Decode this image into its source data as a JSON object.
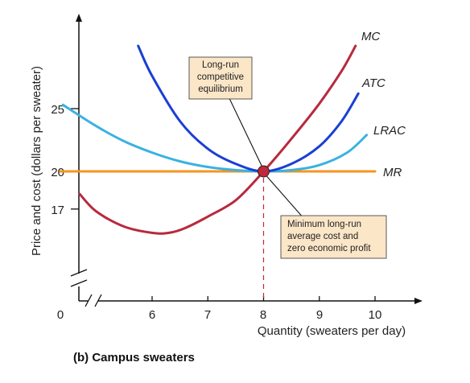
{
  "chart_data": {
    "type": "line",
    "title": "(b) Campus sweaters",
    "xlabel": "Quantity (sweaters per day)",
    "ylabel": "Price and cost (dollars per sweater)",
    "x_ticks": [
      "6",
      "7",
      "8",
      "9",
      "10"
    ],
    "y_ticks": [
      "17",
      "20",
      "25"
    ],
    "origin_label": "0",
    "xlim": [
      5,
      10.5
    ],
    "ylim": [
      13,
      30
    ],
    "axis_breaks": true,
    "grid": false,
    "series": [
      {
        "name": "MC",
        "color": "#b8293d",
        "points": [
          [
            4.7,
            18.2
          ],
          [
            5.0,
            16.8
          ],
          [
            5.5,
            15.6
          ],
          [
            6.0,
            15.1
          ],
          [
            6.3,
            15.1
          ],
          [
            6.6,
            15.5
          ],
          [
            7.0,
            16.4
          ],
          [
            7.5,
            17.7
          ],
          [
            8.0,
            20.0
          ],
          [
            8.5,
            22.6
          ],
          [
            9.0,
            25.4
          ],
          [
            9.4,
            28.0
          ],
          [
            9.65,
            30.0
          ]
        ]
      },
      {
        "name": "ATC",
        "color": "#1a3fd4",
        "points": [
          [
            5.75,
            30.0
          ],
          [
            6.0,
            27.6
          ],
          [
            6.5,
            24.0
          ],
          [
            7.0,
            21.8
          ],
          [
            7.5,
            20.6
          ],
          [
            8.0,
            20.0
          ],
          [
            8.5,
            20.6
          ],
          [
            9.0,
            22.0
          ],
          [
            9.4,
            24.0
          ],
          [
            9.7,
            26.2
          ]
        ]
      },
      {
        "name": "LRAC",
        "color": "#3ab2e2",
        "points": [
          [
            4.4,
            25.3
          ],
          [
            5.0,
            23.6
          ],
          [
            5.5,
            22.4
          ],
          [
            6.0,
            21.5
          ],
          [
            6.5,
            20.8
          ],
          [
            7.0,
            20.35
          ],
          [
            7.5,
            20.1
          ],
          [
            8.0,
            20.0
          ],
          [
            8.5,
            20.1
          ],
          [
            9.0,
            20.5
          ],
          [
            9.5,
            21.5
          ],
          [
            9.85,
            22.9
          ]
        ]
      },
      {
        "name": "MR",
        "color": "#f7941d",
        "points": [
          [
            4.35,
            20.0
          ],
          [
            10.0,
            20.0
          ]
        ]
      }
    ],
    "equilibrium": {
      "x": 8,
      "y": 20,
      "x_label": "8",
      "y_label": "20",
      "highlight_color": "#c0273b"
    },
    "annotations": [
      {
        "text": [
          "Long-run",
          "competitive",
          "equilibrium"
        ]
      },
      {
        "text": [
          "Minimum long-run",
          "average cost and",
          "zero economic profit"
        ]
      }
    ]
  }
}
